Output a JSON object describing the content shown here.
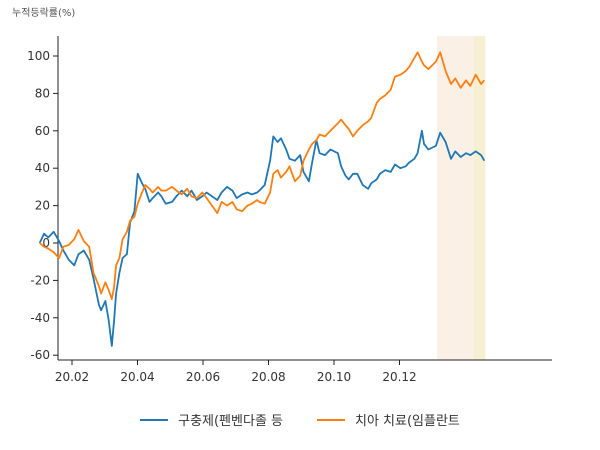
{
  "chart_data": {
    "type": "line",
    "unit_label": "누적등락률(%)",
    "x_ticks": [
      "20.02",
      "20.04",
      "20.06",
      "20.08",
      "20.10",
      "20.12"
    ],
    "y_ticks": [
      "100",
      "80",
      "60",
      "40",
      "20",
      "0",
      "-20",
      "-40",
      "-60"
    ],
    "ylim": [
      -60,
      110
    ],
    "shaded_regions": [
      {
        "from": "2021-01-05",
        "to": "2021-02-08",
        "color": "#fbf0e6"
      },
      {
        "from": "2021-02-08",
        "to": "2021-02-19",
        "color": "#f6efd2"
      }
    ],
    "series": [
      {
        "name": "구충제(펜벤다졸 등",
        "color": "#1f77b4",
        "points": [
          [
            "2020-01-02",
            0
          ],
          [
            "2020-01-06",
            5
          ],
          [
            "2020-01-10",
            3
          ],
          [
            "2020-01-15",
            6
          ],
          [
            "2020-01-20",
            1
          ],
          [
            "2020-01-24",
            -4
          ],
          [
            "2020-01-29",
            -9
          ],
          [
            "2020-02-03",
            -12
          ],
          [
            "2020-02-07",
            -6
          ],
          [
            "2020-02-12",
            -4
          ],
          [
            "2020-02-17",
            -9
          ],
          [
            "2020-02-21",
            -19
          ],
          [
            "2020-02-26",
            -33
          ],
          [
            "2020-02-28",
            -36
          ],
          [
            "2020-03-03",
            -31
          ],
          [
            "2020-03-06",
            -41
          ],
          [
            "2020-03-09",
            -55
          ],
          [
            "2020-03-11",
            -42
          ],
          [
            "2020-03-13",
            -27
          ],
          [
            "2020-03-16",
            -16
          ],
          [
            "2020-03-19",
            -8
          ],
          [
            "2020-03-23",
            -6
          ],
          [
            "2020-03-26",
            11
          ],
          [
            "2020-03-30",
            17
          ],
          [
            "2020-04-02",
            37
          ],
          [
            "2020-04-06",
            32
          ],
          [
            "2020-04-09",
            29
          ],
          [
            "2020-04-13",
            22
          ],
          [
            "2020-04-16",
            24
          ],
          [
            "2020-04-21",
            27
          ],
          [
            "2020-04-24",
            25
          ],
          [
            "2020-04-28",
            21
          ],
          [
            "2020-05-04",
            22
          ],
          [
            "2020-05-08",
            25
          ],
          [
            "2020-05-13",
            28
          ],
          [
            "2020-05-18",
            25
          ],
          [
            "2020-05-22",
            28
          ],
          [
            "2020-05-27",
            23
          ],
          [
            "2020-06-01",
            25
          ],
          [
            "2020-06-05",
            27
          ],
          [
            "2020-06-10",
            25
          ],
          [
            "2020-06-15",
            23
          ],
          [
            "2020-06-19",
            27
          ],
          [
            "2020-06-24",
            30
          ],
          [
            "2020-06-29",
            28
          ],
          [
            "2020-07-03",
            24
          ],
          [
            "2020-07-08",
            26
          ],
          [
            "2020-07-13",
            27
          ],
          [
            "2020-07-17",
            26
          ],
          [
            "2020-07-22",
            27
          ],
          [
            "2020-07-24",
            28
          ],
          [
            "2020-07-29",
            31
          ],
          [
            "2020-08-03",
            44
          ],
          [
            "2020-08-06",
            57
          ],
          [
            "2020-08-10",
            54
          ],
          [
            "2020-08-13",
            56
          ],
          [
            "2020-08-18",
            50
          ],
          [
            "2020-08-21",
            45
          ],
          [
            "2020-08-26",
            44
          ],
          [
            "2020-08-31",
            47
          ],
          [
            "2020-09-03",
            38
          ],
          [
            "2020-09-08",
            33
          ],
          [
            "2020-09-11",
            43
          ],
          [
            "2020-09-15",
            55
          ],
          [
            "2020-09-18",
            48
          ],
          [
            "2020-09-23",
            47
          ],
          [
            "2020-09-28",
            50
          ],
          [
            "2020-10-05",
            48
          ],
          [
            "2020-10-08",
            41
          ],
          [
            "2020-10-12",
            36
          ],
          [
            "2020-10-15",
            34
          ],
          [
            "2020-10-19",
            37
          ],
          [
            "2020-10-23",
            37
          ],
          [
            "2020-10-28",
            31
          ],
          [
            "2020-11-02",
            29
          ],
          [
            "2020-11-05",
            32
          ],
          [
            "2020-11-10",
            34
          ],
          [
            "2020-11-13",
            37
          ],
          [
            "2020-11-18",
            39
          ],
          [
            "2020-11-23",
            38
          ],
          [
            "2020-11-27",
            42
          ],
          [
            "2020-12-02",
            40
          ],
          [
            "2020-12-07",
            41
          ],
          [
            "2020-12-10",
            43
          ],
          [
            "2020-12-15",
            45
          ],
          [
            "2020-12-18",
            48
          ],
          [
            "2020-12-22",
            60
          ],
          [
            "2020-12-24",
            53
          ],
          [
            "2020-12-28",
            50
          ],
          [
            "2021-01-04",
            52
          ],
          [
            "2021-01-08",
            59
          ],
          [
            "2021-01-13",
            54
          ],
          [
            "2021-01-18",
            45
          ],
          [
            "2021-01-22",
            49
          ],
          [
            "2021-01-27",
            46
          ],
          [
            "2021-02-01",
            48
          ],
          [
            "2021-02-05",
            47
          ],
          [
            "2021-02-10",
            49
          ],
          [
            "2021-02-15",
            47
          ],
          [
            "2021-02-18",
            44
          ]
        ]
      },
      {
        "name": "치아 치료(임플란트",
        "color": "#ff7f0e",
        "points": [
          [
            "2020-01-02",
            0
          ],
          [
            "2020-01-06",
            -2
          ],
          [
            "2020-01-10",
            -3
          ],
          [
            "2020-01-15",
            -5
          ],
          [
            "2020-01-20",
            -8
          ],
          [
            "2020-01-24",
            -2
          ],
          [
            "2020-01-29",
            -1
          ],
          [
            "2020-02-03",
            2
          ],
          [
            "2020-02-07",
            7
          ],
          [
            "2020-02-12",
            1
          ],
          [
            "2020-02-17",
            -2
          ],
          [
            "2020-02-21",
            -16
          ],
          [
            "2020-02-26",
            -23
          ],
          [
            "2020-02-28",
            -27
          ],
          [
            "2020-03-03",
            -21
          ],
          [
            "2020-03-06",
            -25
          ],
          [
            "2020-03-09",
            -30
          ],
          [
            "2020-03-11",
            -24
          ],
          [
            "2020-03-13",
            -12
          ],
          [
            "2020-03-16",
            -8
          ],
          [
            "2020-03-19",
            2
          ],
          [
            "2020-03-23",
            6
          ],
          [
            "2020-03-26",
            12
          ],
          [
            "2020-03-30",
            14
          ],
          [
            "2020-04-02",
            21
          ],
          [
            "2020-04-06",
            27
          ],
          [
            "2020-04-09",
            31
          ],
          [
            "2020-04-13",
            29
          ],
          [
            "2020-04-16",
            27
          ],
          [
            "2020-04-21",
            30
          ],
          [
            "2020-04-24",
            28
          ],
          [
            "2020-04-28",
            28
          ],
          [
            "2020-05-04",
            30
          ],
          [
            "2020-05-08",
            28
          ],
          [
            "2020-05-13",
            26
          ],
          [
            "2020-05-18",
            29
          ],
          [
            "2020-05-22",
            25
          ],
          [
            "2020-05-27",
            24
          ],
          [
            "2020-06-01",
            27
          ],
          [
            "2020-06-05",
            24
          ],
          [
            "2020-06-10",
            20
          ],
          [
            "2020-06-15",
            16
          ],
          [
            "2020-06-19",
            22
          ],
          [
            "2020-06-24",
            20
          ],
          [
            "2020-06-29",
            22
          ],
          [
            "2020-07-03",
            18
          ],
          [
            "2020-07-08",
            17
          ],
          [
            "2020-07-13",
            20
          ],
          [
            "2020-07-17",
            21
          ],
          [
            "2020-07-22",
            23
          ],
          [
            "2020-07-24",
            22
          ],
          [
            "2020-07-29",
            21
          ],
          [
            "2020-08-03",
            27
          ],
          [
            "2020-08-06",
            37
          ],
          [
            "2020-08-10",
            39
          ],
          [
            "2020-08-13",
            35
          ],
          [
            "2020-08-18",
            38
          ],
          [
            "2020-08-21",
            41
          ],
          [
            "2020-08-26",
            33
          ],
          [
            "2020-08-31",
            36
          ],
          [
            "2020-09-03",
            44
          ],
          [
            "2020-09-08",
            50
          ],
          [
            "2020-09-11",
            53
          ],
          [
            "2020-09-15",
            55
          ],
          [
            "2020-09-18",
            58
          ],
          [
            "2020-09-23",
            57
          ],
          [
            "2020-09-28",
            60
          ],
          [
            "2020-10-05",
            64
          ],
          [
            "2020-10-08",
            66
          ],
          [
            "2020-10-12",
            63
          ],
          [
            "2020-10-15",
            61
          ],
          [
            "2020-10-19",
            57
          ],
          [
            "2020-10-23",
            60
          ],
          [
            "2020-10-28",
            63
          ],
          [
            "2020-11-02",
            65
          ],
          [
            "2020-11-05",
            67
          ],
          [
            "2020-11-10",
            75
          ],
          [
            "2020-11-13",
            77
          ],
          [
            "2020-11-18",
            79
          ],
          [
            "2020-11-23",
            82
          ],
          [
            "2020-11-27",
            89
          ],
          [
            "2020-12-02",
            90
          ],
          [
            "2020-12-07",
            92
          ],
          [
            "2020-12-10",
            94
          ],
          [
            "2020-12-15",
            99
          ],
          [
            "2020-12-18",
            102
          ],
          [
            "2020-12-22",
            97
          ],
          [
            "2020-12-24",
            95
          ],
          [
            "2020-12-28",
            93
          ],
          [
            "2021-01-04",
            97
          ],
          [
            "2021-01-08",
            102
          ],
          [
            "2021-01-13",
            92
          ],
          [
            "2021-01-18",
            85
          ],
          [
            "2021-01-22",
            88
          ],
          [
            "2021-01-27",
            83
          ],
          [
            "2021-02-01",
            87
          ],
          [
            "2021-02-05",
            84
          ],
          [
            "2021-02-10",
            90
          ],
          [
            "2021-02-15",
            85
          ],
          [
            "2021-02-18",
            87
          ]
        ]
      }
    ]
  }
}
